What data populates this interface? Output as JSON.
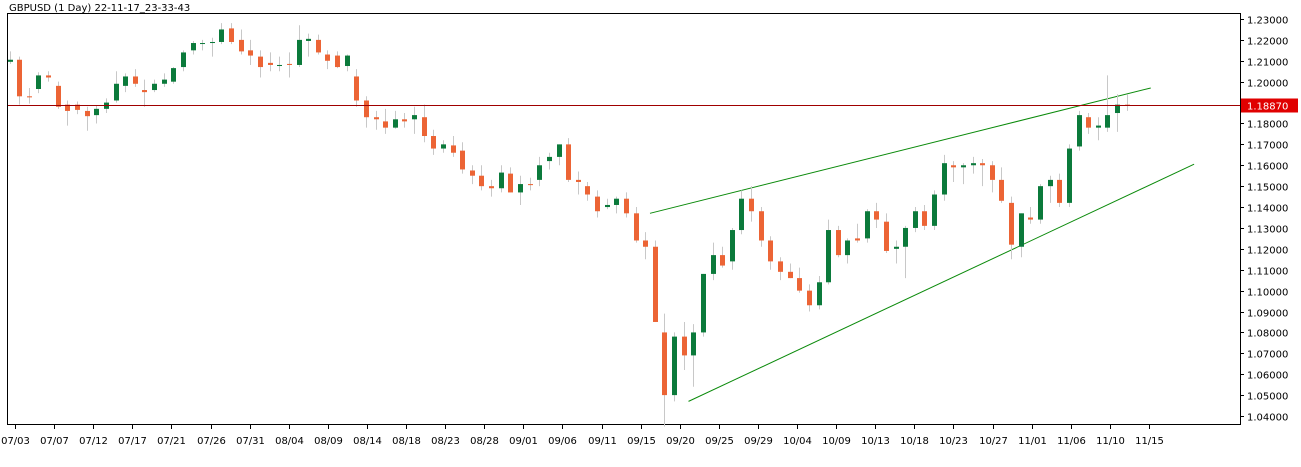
{
  "chart_data": {
    "type": "candlestick",
    "title": "GBPUSD (1 Day) 22-11-17_23-33-43",
    "ylim": [
      1.034,
      1.232
    ],
    "y_ticks": [
      "1.23000",
      "1.22000",
      "1.21000",
      "1.20000",
      "1.19000",
      "1.18000",
      "1.17000",
      "1.16000",
      "1.15000",
      "1.14000",
      "1.13000",
      "1.12000",
      "1.11000",
      "1.10000",
      "1.09000",
      "1.08000",
      "1.07000",
      "1.06000",
      "1.05000",
      "1.04000"
    ],
    "x_ticks": [
      "07/03",
      "07/07",
      "07/12",
      "07/17",
      "07/21",
      "07/26",
      "07/31",
      "08/04",
      "08/09",
      "08/14",
      "08/18",
      "08/23",
      "08/28",
      "09/01",
      "09/06",
      "09/11",
      "09/15",
      "09/20",
      "09/25",
      "09/29",
      "10/04",
      "10/09",
      "10/13",
      "10/18",
      "10/23",
      "10/27",
      "11/01",
      "11/06",
      "11/10",
      "11/15"
    ],
    "current_price": {
      "label": "1.18870",
      "value": 1.1887
    },
    "colors": {
      "up": "#0b7a3b",
      "down": "#ec6435",
      "trendline": "#0a8a0a",
      "price_line": "#a00000",
      "price_tag": "#e00000"
    },
    "candles": [
      {
        "o": 1.2095,
        "h": 1.2145,
        "l": 1.2085,
        "c": 1.2105
      },
      {
        "o": 1.2105,
        "h": 1.212,
        "l": 1.189,
        "c": 1.193
      },
      {
        "o": 1.193,
        "h": 1.197,
        "l": 1.1895,
        "c": 1.1925
      },
      {
        "o": 1.1965,
        "h": 1.2045,
        "l": 1.1945,
        "c": 1.203
      },
      {
        "o": 1.203,
        "h": 1.205,
        "l": 1.2,
        "c": 1.202
      },
      {
        "o": 1.198,
        "h": 1.2,
        "l": 1.187,
        "c": 1.188
      },
      {
        "o": 1.189,
        "h": 1.191,
        "l": 1.179,
        "c": 1.186
      },
      {
        "o": 1.189,
        "h": 1.1905,
        "l": 1.1845,
        "c": 1.1865
      },
      {
        "o": 1.186,
        "h": 1.188,
        "l": 1.1765,
        "c": 1.1835
      },
      {
        "o": 1.184,
        "h": 1.1885,
        "l": 1.18,
        "c": 1.187
      },
      {
        "o": 1.187,
        "h": 1.192,
        "l": 1.185,
        "c": 1.19
      },
      {
        "o": 1.191,
        "h": 1.205,
        "l": 1.19,
        "c": 1.199
      },
      {
        "o": 1.198,
        "h": 1.204,
        "l": 1.195,
        "c": 1.2025
      },
      {
        "o": 1.2025,
        "h": 1.206,
        "l": 1.1975,
        "c": 1.199
      },
      {
        "o": 1.196,
        "h": 1.201,
        "l": 1.188,
        "c": 1.195
      },
      {
        "o": 1.196,
        "h": 1.201,
        "l": 1.195,
        "c": 1.199
      },
      {
        "o": 1.199,
        "h": 1.204,
        "l": 1.1975,
        "c": 1.201
      },
      {
        "o": 1.2,
        "h": 1.207,
        "l": 1.199,
        "c": 1.2065
      },
      {
        "o": 1.207,
        "h": 1.215,
        "l": 1.205,
        "c": 1.214
      },
      {
        "o": 1.215,
        "h": 1.2195,
        "l": 1.213,
        "c": 1.2185
      },
      {
        "o": 1.2185,
        "h": 1.22,
        "l": 1.215,
        "c": 1.2185
      },
      {
        "o": 1.2185,
        "h": 1.221,
        "l": 1.212,
        "c": 1.219
      },
      {
        "o": 1.219,
        "h": 1.228,
        "l": 1.218,
        "c": 1.225
      },
      {
        "o": 1.2255,
        "h": 1.228,
        "l": 1.218,
        "c": 1.219
      },
      {
        "o": 1.22,
        "h": 1.225,
        "l": 1.213,
        "c": 1.2145
      },
      {
        "o": 1.215,
        "h": 1.22,
        "l": 1.208,
        "c": 1.2125
      },
      {
        "o": 1.212,
        "h": 1.215,
        "l": 1.202,
        "c": 1.207
      },
      {
        "o": 1.209,
        "h": 1.214,
        "l": 1.205,
        "c": 1.208
      },
      {
        "o": 1.2075,
        "h": 1.212,
        "l": 1.205,
        "c": 1.208
      },
      {
        "o": 1.2085,
        "h": 1.214,
        "l": 1.202,
        "c": 1.208
      },
      {
        "o": 1.208,
        "h": 1.227,
        "l": 1.207,
        "c": 1.22
      },
      {
        "o": 1.2195,
        "h": 1.223,
        "l": 1.212,
        "c": 1.2205
      },
      {
        "o": 1.22,
        "h": 1.2225,
        "l": 1.213,
        "c": 1.214
      },
      {
        "o": 1.213,
        "h": 1.215,
        "l": 1.206,
        "c": 1.21
      },
      {
        "o": 1.2125,
        "h": 1.2145,
        "l": 1.2065,
        "c": 1.207
      },
      {
        "o": 1.2075,
        "h": 1.213,
        "l": 1.205,
        "c": 1.2125
      },
      {
        "o": 1.2025,
        "h": 1.206,
        "l": 1.188,
        "c": 1.191
      },
      {
        "o": 1.191,
        "h": 1.193,
        "l": 1.178,
        "c": 1.183
      },
      {
        "o": 1.183,
        "h": 1.186,
        "l": 1.177,
        "c": 1.182
      },
      {
        "o": 1.181,
        "h": 1.187,
        "l": 1.175,
        "c": 1.178
      },
      {
        "o": 1.178,
        "h": 1.186,
        "l": 1.1775,
        "c": 1.182
      },
      {
        "o": 1.182,
        "h": 1.185,
        "l": 1.178,
        "c": 1.181
      },
      {
        "o": 1.182,
        "h": 1.188,
        "l": 1.175,
        "c": 1.184
      },
      {
        "o": 1.183,
        "h": 1.189,
        "l": 1.171,
        "c": 1.174
      },
      {
        "o": 1.174,
        "h": 1.177,
        "l": 1.165,
        "c": 1.168
      },
      {
        "o": 1.168,
        "h": 1.172,
        "l": 1.166,
        "c": 1.17
      },
      {
        "o": 1.1695,
        "h": 1.174,
        "l": 1.164,
        "c": 1.166
      },
      {
        "o": 1.167,
        "h": 1.171,
        "l": 1.156,
        "c": 1.158
      },
      {
        "o": 1.1575,
        "h": 1.16,
        "l": 1.151,
        "c": 1.155
      },
      {
        "o": 1.155,
        "h": 1.16,
        "l": 1.148,
        "c": 1.15
      },
      {
        "o": 1.15,
        "h": 1.153,
        "l": 1.145,
        "c": 1.149
      },
      {
        "o": 1.149,
        "h": 1.16,
        "l": 1.147,
        "c": 1.1565
      },
      {
        "o": 1.156,
        "h": 1.159,
        "l": 1.147,
        "c": 1.147
      },
      {
        "o": 1.147,
        "h": 1.155,
        "l": 1.141,
        "c": 1.151
      },
      {
        "o": 1.151,
        "h": 1.154,
        "l": 1.148,
        "c": 1.1505
      },
      {
        "o": 1.153,
        "h": 1.164,
        "l": 1.15,
        "c": 1.16
      },
      {
        "o": 1.162,
        "h": 1.166,
        "l": 1.158,
        "c": 1.164
      },
      {
        "o": 1.164,
        "h": 1.17,
        "l": 1.16,
        "c": 1.17
      },
      {
        "o": 1.17,
        "h": 1.173,
        "l": 1.152,
        "c": 1.153
      },
      {
        "o": 1.153,
        "h": 1.157,
        "l": 1.146,
        "c": 1.152
      },
      {
        "o": 1.15,
        "h": 1.152,
        "l": 1.143,
        "c": 1.146
      },
      {
        "o": 1.145,
        "h": 1.148,
        "l": 1.135,
        "c": 1.138
      },
      {
        "o": 1.14,
        "h": 1.144,
        "l": 1.139,
        "c": 1.141
      },
      {
        "o": 1.141,
        "h": 1.145,
        "l": 1.137,
        "c": 1.144
      },
      {
        "o": 1.144,
        "h": 1.147,
        "l": 1.135,
        "c": 1.137
      },
      {
        "o": 1.137,
        "h": 1.14,
        "l": 1.123,
        "c": 1.124
      },
      {
        "o": 1.124,
        "h": 1.128,
        "l": 1.115,
        "c": 1.121
      },
      {
        "o": 1.121,
        "h": 1.124,
        "l": 1.085,
        "c": 1.085
      },
      {
        "o": 1.08,
        "h": 1.089,
        "l": 1.035,
        "c": 1.05
      },
      {
        "o": 1.05,
        "h": 1.08,
        "l": 1.047,
        "c": 1.078
      },
      {
        "o": 1.078,
        "h": 1.085,
        "l": 1.062,
        "c": 1.069
      },
      {
        "o": 1.069,
        "h": 1.084,
        "l": 1.054,
        "c": 1.08
      },
      {
        "o": 1.08,
        "h": 1.108,
        "l": 1.078,
        "c": 1.108
      },
      {
        "o": 1.108,
        "h": 1.123,
        "l": 1.105,
        "c": 1.117
      },
      {
        "o": 1.117,
        "h": 1.121,
        "l": 1.111,
        "c": 1.112
      },
      {
        "o": 1.114,
        "h": 1.13,
        "l": 1.11,
        "c": 1.129
      },
      {
        "o": 1.129,
        "h": 1.148,
        "l": 1.127,
        "c": 1.144
      },
      {
        "o": 1.144,
        "h": 1.15,
        "l": 1.133,
        "c": 1.138
      },
      {
        "o": 1.138,
        "h": 1.14,
        "l": 1.121,
        "c": 1.124
      },
      {
        "o": 1.124,
        "h": 1.126,
        "l": 1.11,
        "c": 1.114
      },
      {
        "o": 1.114,
        "h": 1.116,
        "l": 1.105,
        "c": 1.109
      },
      {
        "o": 1.109,
        "h": 1.113,
        "l": 1.106,
        "c": 1.106
      },
      {
        "o": 1.106,
        "h": 1.111,
        "l": 1.099,
        "c": 1.1
      },
      {
        "o": 1.1,
        "h": 1.103,
        "l": 1.09,
        "c": 1.093
      },
      {
        "o": 1.093,
        "h": 1.107,
        "l": 1.091,
        "c": 1.104
      },
      {
        "o": 1.104,
        "h": 1.134,
        "l": 1.103,
        "c": 1.129
      },
      {
        "o": 1.129,
        "h": 1.131,
        "l": 1.116,
        "c": 1.117
      },
      {
        "o": 1.117,
        "h": 1.125,
        "l": 1.113,
        "c": 1.124
      },
      {
        "o": 1.125,
        "h": 1.132,
        "l": 1.123,
        "c": 1.124
      },
      {
        "o": 1.125,
        "h": 1.139,
        "l": 1.123,
        "c": 1.138
      },
      {
        "o": 1.138,
        "h": 1.142,
        "l": 1.13,
        "c": 1.134
      },
      {
        "o": 1.133,
        "h": 1.137,
        "l": 1.118,
        "c": 1.119
      },
      {
        "o": 1.12,
        "h": 1.124,
        "l": 1.113,
        "c": 1.121
      },
      {
        "o": 1.121,
        "h": 1.131,
        "l": 1.106,
        "c": 1.13
      },
      {
        "o": 1.13,
        "h": 1.14,
        "l": 1.128,
        "c": 1.138
      },
      {
        "o": 1.138,
        "h": 1.141,
        "l": 1.129,
        "c": 1.131
      },
      {
        "o": 1.131,
        "h": 1.148,
        "l": 1.129,
        "c": 1.146
      },
      {
        "o": 1.146,
        "h": 1.165,
        "l": 1.143,
        "c": 1.161
      },
      {
        "o": 1.16,
        "h": 1.162,
        "l": 1.152,
        "c": 1.159
      },
      {
        "o": 1.159,
        "h": 1.161,
        "l": 1.151,
        "c": 1.16
      },
      {
        "o": 1.16,
        "h": 1.164,
        "l": 1.156,
        "c": 1.161
      },
      {
        "o": 1.161,
        "h": 1.163,
        "l": 1.15,
        "c": 1.16
      },
      {
        "o": 1.16,
        "h": 1.162,
        "l": 1.147,
        "c": 1.153
      },
      {
        "o": 1.153,
        "h": 1.159,
        "l": 1.142,
        "c": 1.143
      },
      {
        "o": 1.142,
        "h": 1.145,
        "l": 1.115,
        "c": 1.122
      },
      {
        "o": 1.121,
        "h": 1.137,
        "l": 1.116,
        "c": 1.137
      },
      {
        "o": 1.135,
        "h": 1.14,
        "l": 1.132,
        "c": 1.134
      },
      {
        "o": 1.134,
        "h": 1.151,
        "l": 1.132,
        "c": 1.15
      },
      {
        "o": 1.15,
        "h": 1.155,
        "l": 1.142,
        "c": 1.153
      },
      {
        "o": 1.153,
        "h": 1.156,
        "l": 1.14,
        "c": 1.142
      },
      {
        "o": 1.142,
        "h": 1.17,
        "l": 1.14,
        "c": 1.168
      },
      {
        "o": 1.169,
        "h": 1.186,
        "l": 1.167,
        "c": 1.184
      },
      {
        "o": 1.183,
        "h": 1.185,
        "l": 1.175,
        "c": 1.178
      },
      {
        "o": 1.178,
        "h": 1.183,
        "l": 1.172,
        "c": 1.179
      },
      {
        "o": 1.178,
        "h": 1.203,
        "l": 1.176,
        "c": 1.184
      },
      {
        "o": 1.185,
        "h": 1.194,
        "l": 1.176,
        "c": 1.189
      },
      {
        "o": 1.189,
        "h": 1.194,
        "l": 1.186,
        "c": 1.1887
      }
    ],
    "trendlines": [
      {
        "name": "upper",
        "from": {
          "i": 66.5,
          "price": 1.137
        },
        "to": {
          "i": 118.5,
          "price": 1.197
        }
      },
      {
        "name": "lower",
        "from": {
          "i": 70.5,
          "price": 1.047
        },
        "to": {
          "i": 123,
          "price": 1.1605
        }
      }
    ]
  }
}
